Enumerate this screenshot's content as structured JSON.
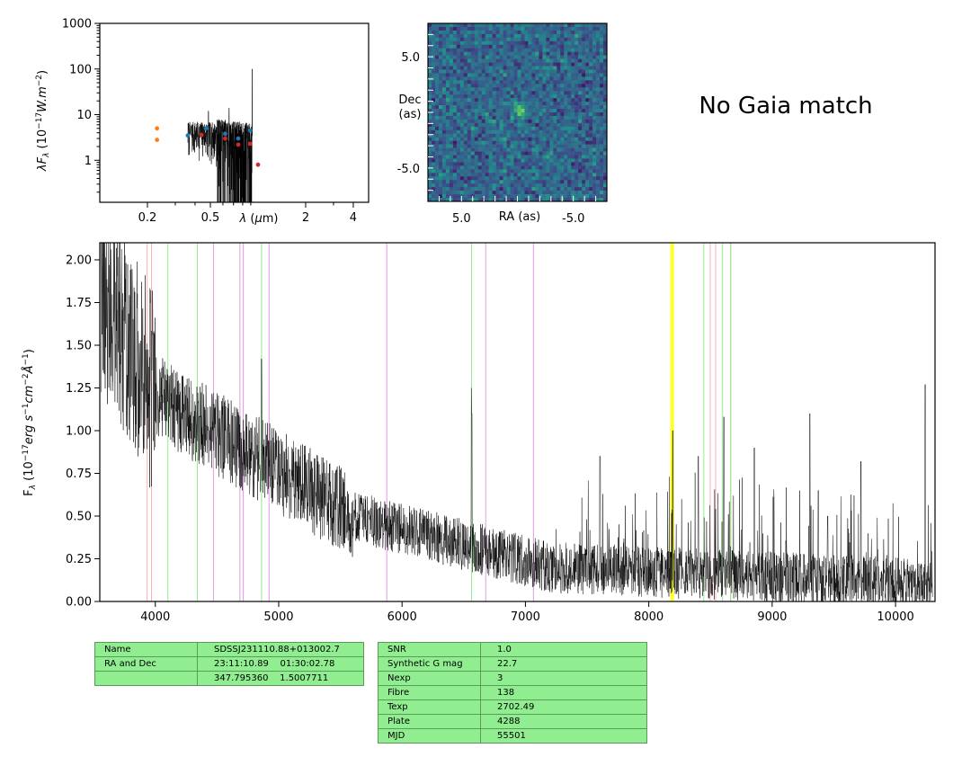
{
  "chart_data": [
    {
      "type": "scatter",
      "panel": "sed",
      "ylabel": "λF_λ (10^-17 W.m^-2)",
      "xlabel": "λ (μm)",
      "xscale": "log",
      "yscale": "log",
      "xlim": [
        0.1,
        5
      ],
      "ylim": [
        0.12,
        1000
      ],
      "xticks": [
        "0.2",
        "0.5",
        "2",
        "4"
      ],
      "yticks": [
        "1",
        "10",
        "100",
        "1000"
      ],
      "series": [
        {
          "color": "#ff7f0e",
          "x": [
            0.23,
            0.23
          ],
          "y": [
            5.0,
            2.8
          ]
        },
        {
          "color": "#1f77b4",
          "x": [
            0.36,
            0.47,
            0.62,
            0.75,
            0.89
          ],
          "y": [
            3.5,
            5.0,
            3.8,
            3.0,
            4.5
          ]
        },
        {
          "color": "#d62728",
          "x": [
            0.44,
            0.62,
            0.75,
            0.89,
            1.0
          ],
          "y": [
            3.6,
            3.0,
            2.2,
            2.3,
            0.8
          ]
        }
      ]
    },
    {
      "type": "heatmap",
      "panel": "image",
      "xlabel": "RA (as)",
      "ylabel": "Dec (as)",
      "ylabel_lines": [
        "Dec",
        "(as)"
      ],
      "xlim": [
        8,
        -8
      ],
      "ylim": [
        -8,
        8
      ],
      "xticks": [
        "5.0",
        "-5.0"
      ],
      "yticks": [
        "5.0",
        "-5.0"
      ]
    },
    {
      "type": "line",
      "panel": "spectrum",
      "ylabel": "F_λ (10^-17 erg s^-1 cm^-2 Å^-1)",
      "xlim": [
        3550,
        10320
      ],
      "ylim": [
        0,
        2.1
      ],
      "xticks": [
        "4000",
        "5000",
        "6000",
        "7000",
        "8000",
        "9000",
        "10000"
      ],
      "yticks": [
        "0.00",
        "0.25",
        "0.50",
        "0.75",
        "1.00",
        "1.25",
        "1.50",
        "1.75",
        "2.00"
      ],
      "lines": {
        "red": {
          "color": "#ffb0b0",
          "x": [
            3934,
            3969,
            8498,
            8542,
            8662
          ]
        },
        "green": {
          "color": "#90ee90",
          "x": [
            4102,
            4341,
            4861,
            6563,
            8446,
            8598,
            8665
          ]
        },
        "violet": {
          "color": "#e29ae2",
          "x": [
            4471,
            4686,
            4713,
            4922,
            5876,
            6678,
            7065
          ]
        },
        "yellow": {
          "color": "#ffff30",
          "x": [
            8183,
            8195
          ]
        }
      }
    }
  ],
  "gaia_text": "No Gaia match",
  "table_left": [
    {
      "k": "Name",
      "v": "SDSSJ231110.88+013002.7"
    },
    {
      "k": "RA and Dec",
      "v": "23:11:10.89    01:30:02.78"
    },
    {
      "k": "",
      "v": "347.795360    1.5007711"
    }
  ],
  "table_right": [
    {
      "k": "SNR",
      "v": "1.0"
    },
    {
      "k": "Synthetic G mag",
      "v": "22.7"
    },
    {
      "k": "Nexp",
      "v": "3"
    },
    {
      "k": "Fibre",
      "v": "138"
    },
    {
      "k": "Texp",
      "v": "2702.49"
    },
    {
      "k": "Plate",
      "v": "4288"
    },
    {
      "k": "MJD",
      "v": "55501"
    }
  ]
}
